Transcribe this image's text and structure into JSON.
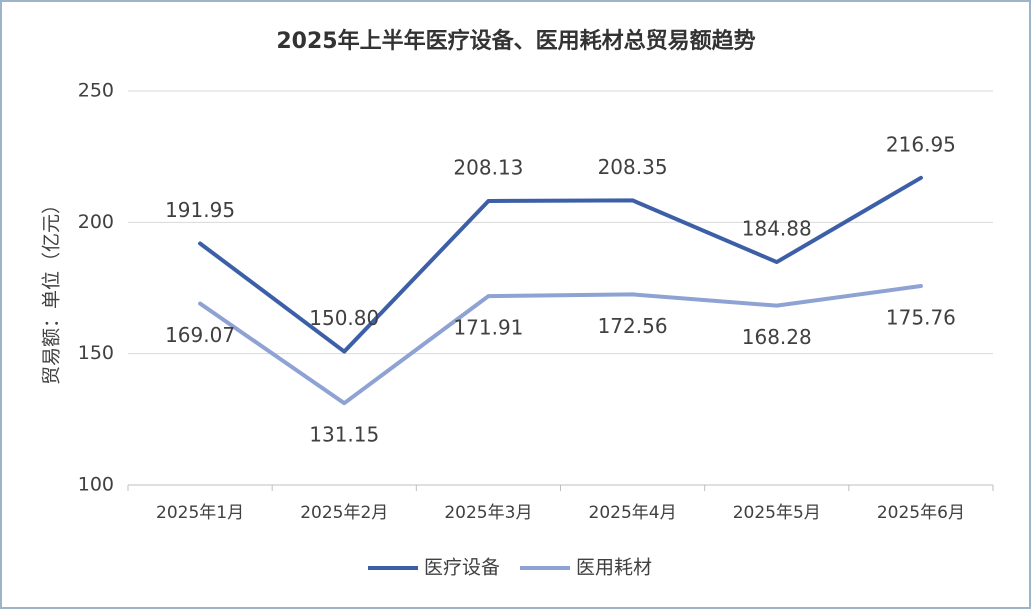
{
  "chart_data": {
    "type": "line",
    "title": "2025年上半年医疗设备、医用耗材总贸易额趋势",
    "y_label": "贸易额：单位（亿元）",
    "categories": [
      "2025年1月",
      "2025年2月",
      "2025年3月",
      "2025年4月",
      "2025年5月",
      "2025年6月"
    ],
    "series": [
      {
        "name": "医疗设备",
        "color": "#3c5fa8",
        "values": [
          191.95,
          150.8,
          208.13,
          208.35,
          184.88,
          216.95
        ],
        "value_labels": [
          "191.95",
          "150.80",
          "208.13",
          "208.35",
          "184.88",
          "216.95"
        ]
      },
      {
        "name": "医用耗材",
        "color": "#8fa2d4",
        "values": [
          169.07,
          131.15,
          171.91,
          172.56,
          168.28,
          175.76
        ],
        "value_labels": [
          "169.07",
          "131.15",
          "171.91",
          "172.56",
          "168.28",
          "175.76"
        ]
      }
    ],
    "ylim": [
      100,
      250
    ],
    "yticks": [
      100,
      150,
      200,
      250
    ],
    "grid": true,
    "legend": "bottom"
  }
}
